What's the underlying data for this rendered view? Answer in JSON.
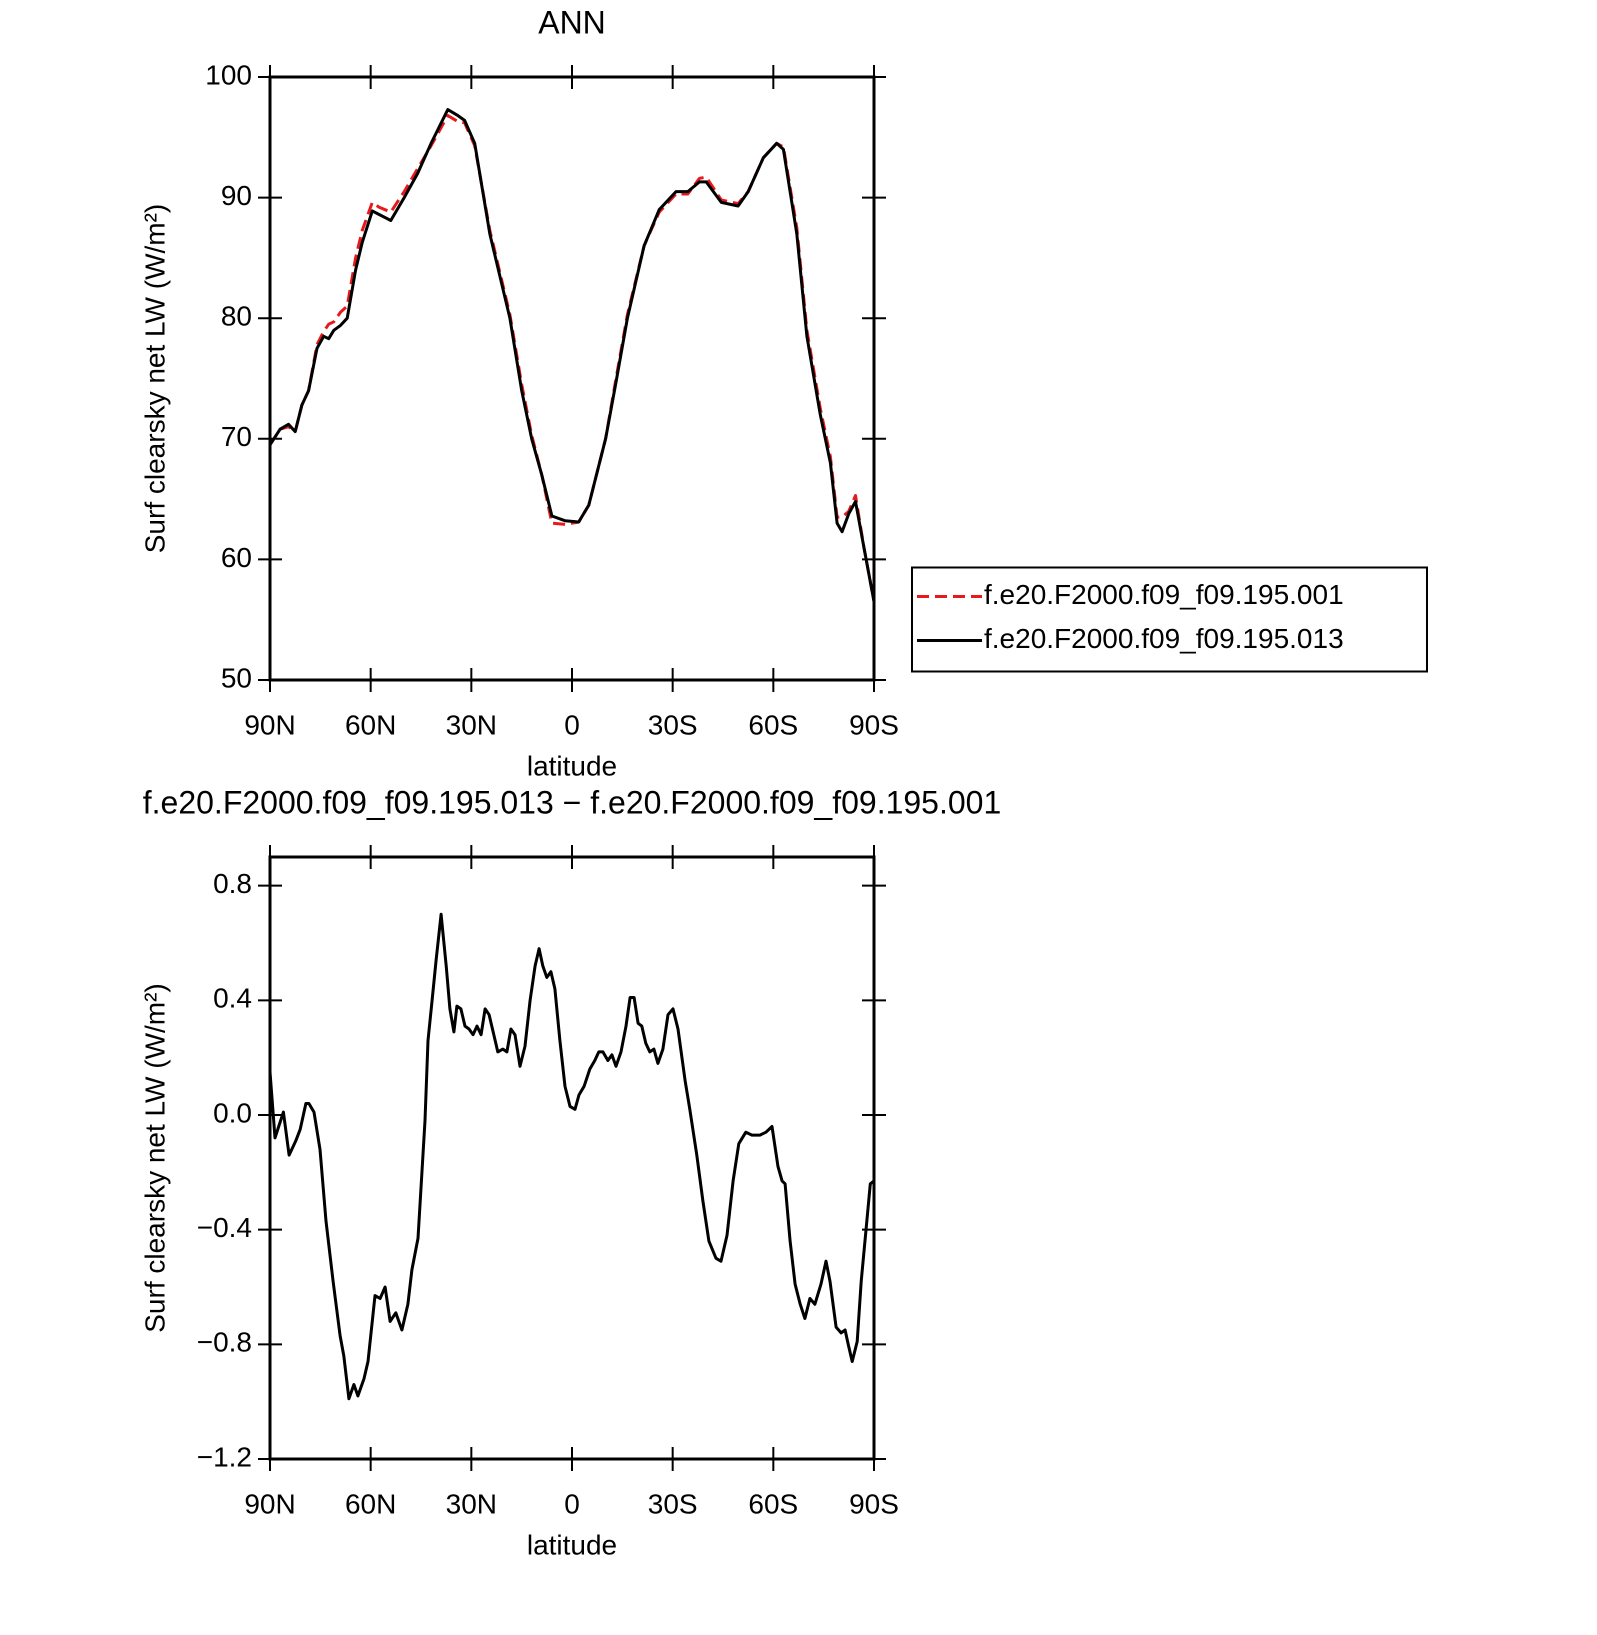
{
  "chart_data": [
    {
      "type": "line",
      "title": "ANN",
      "xlabel": "latitude",
      "ylabel": "Surf clearsky net LW (W/m²)",
      "xlim": [
        90,
        -90
      ],
      "xticks": [
        {
          "value": 90,
          "label": "90N"
        },
        {
          "value": 60,
          "label": "60N"
        },
        {
          "value": 30,
          "label": "30N"
        },
        0,
        {
          "value": -30,
          "label": "30S"
        },
        {
          "value": -60,
          "label": "60S"
        },
        {
          "value": -90,
          "label": "90S"
        }
      ],
      "ylim": [
        50,
        100
      ],
      "yticks": [
        50,
        60,
        70,
        80,
        90,
        100
      ],
      "legend": "right",
      "x": [
        90,
        87,
        84.5,
        82.5,
        80.5,
        78.5,
        76,
        74,
        72.5,
        71,
        69,
        67,
        64.5,
        62.5,
        59.5,
        57.5,
        54,
        50,
        46,
        42,
        37,
        34,
        32,
        29,
        24.5,
        18.5,
        15,
        12,
        9,
        6,
        2,
        -2,
        -5,
        -10,
        -13,
        -16.5,
        -21.5,
        -26,
        -31,
        -34.5,
        -38,
        -40,
        -44.5,
        -49.5,
        -52.5,
        -57,
        -61,
        -63,
        -67,
        -70,
        -74,
        -77,
        -79,
        -80.5,
        -82.5,
        -84.5,
        -87,
        -90
      ],
      "series": [
        {
          "name": "f.e20.F2000.f09_f09.195.001",
          "color": "#e8191c",
          "linestyle": "dashed",
          "values": [
            69.5,
            70.8,
            71,
            70.6,
            72.8,
            74,
            77.8,
            78.9,
            79.5,
            79.7,
            80.5,
            81,
            85,
            87.3,
            89.6,
            89.2,
            88.8,
            90.5,
            92.4,
            94.3,
            96.8,
            96.3,
            96.2,
            94.3,
            87.3,
            80.3,
            74.5,
            70.3,
            67,
            63,
            62.9,
            63.1,
            64.5,
            70,
            74.8,
            80.3,
            86,
            88.8,
            90.3,
            90.3,
            91.6,
            91.7,
            89.8,
            89.5,
            90.5,
            93.3,
            94.5,
            94.2,
            87.5,
            79,
            72.5,
            68.5,
            63.5,
            63.5,
            64,
            65.3,
            61,
            56.5
          ]
        },
        {
          "name": "f.e20.F2000.f09_f09.195.013",
          "color": "#000000",
          "linestyle": "solid",
          "values": [
            69.5,
            70.8,
            71.2,
            70.6,
            72.8,
            74,
            77.5,
            78.5,
            78.3,
            79,
            79.4,
            80,
            84,
            86.3,
            88.9,
            88.6,
            88.1,
            90,
            92,
            94.5,
            97.3,
            96.8,
            96.4,
            94.5,
            87,
            80,
            74,
            70,
            67,
            63.6,
            63.2,
            63.1,
            64.5,
            70,
            74.5,
            80,
            86,
            89,
            90.5,
            90.5,
            91.3,
            91.3,
            89.6,
            89.3,
            90.5,
            93.3,
            94.5,
            94,
            87,
            78.5,
            72,
            68,
            63,
            62.3,
            63.8,
            64.8,
            61,
            56.5
          ]
        }
      ]
    },
    {
      "type": "line",
      "title": "f.e20.F2000.f09_f09.195.013 − f.e20.F2000.f09_f09.195.001",
      "xlabel": "latitude",
      "ylabel": "Surf clearsky net LW (W/m²)",
      "xlim": [
        90,
        -90
      ],
      "xticks": [
        {
          "value": 90,
          "label": "90N"
        },
        {
          "value": 60,
          "label": "60N"
        },
        {
          "value": 30,
          "label": "30N"
        },
        0,
        {
          "value": -30,
          "label": "30S"
        },
        {
          "value": -60,
          "label": "60S"
        },
        {
          "value": -90,
          "label": "90S"
        }
      ],
      "ylim": [
        -1.2,
        0.9
      ],
      "yticks": [
        {
          "value": -1.2,
          "label": "−1.2"
        },
        {
          "value": -0.8,
          "label": "−0.8"
        },
        {
          "value": -0.4,
          "label": "−0.4"
        },
        {
          "value": 0,
          "label": "0.0"
        },
        0.4,
        0.8
      ],
      "color": "#000000",
      "x": [
        90,
        88.5,
        86,
        84.3,
        82.3,
        81,
        79.3,
        78.4,
        76.9,
        75.1,
        73.3,
        71.2,
        69.1,
        68,
        66.5,
        65,
        63.8,
        62,
        60.8,
        58.7,
        57.2,
        55.7,
        54.2,
        52.5,
        50.7,
        48.9,
        47.7,
        45.9,
        43.8,
        42.9,
        41.7,
        40.5,
        39,
        37.5,
        36.4,
        35.2,
        34.3,
        33.1,
        31.9,
        30.7,
        29.5,
        28.3,
        27.1,
        25.9,
        24.7,
        23.3,
        22.1,
        20.6,
        19.4,
        18.2,
        17,
        15.5,
        14,
        12.5,
        11,
        9.8,
        8.7,
        7.5,
        6.3,
        5.1,
        3.6,
        2.1,
        0.6,
        -0.9,
        -2.1,
        -3.6,
        -5.3,
        -6.8,
        -8,
        -9.2,
        -10.7,
        -11.9,
        -13.1,
        -14.6,
        -16.1,
        -17.3,
        -18.5,
        -19.7,
        -20.8,
        -22,
        -23.2,
        -24.4,
        -25.6,
        -27.1,
        -28.6,
        -30.1,
        -31.6,
        -33.7,
        -35.1,
        -37.2,
        -39,
        -40.8,
        -42.9,
        -44.4,
        -46.2,
        -48,
        -49.7,
        -51.8,
        -53.6,
        -56,
        -57.8,
        -59.6,
        -61.4,
        -62.6,
        -63.5,
        -65,
        -66.5,
        -68,
        -69.4,
        -70.9,
        -72.4,
        -74.2,
        -75.7,
        -76.9,
        -78.7,
        -80.2,
        -81.4,
        -82.3,
        -83.5,
        -85,
        -86.2,
        -87.7,
        -88.9,
        -90
      ],
      "values": [
        0.15,
        -0.08,
        0.01,
        -0.14,
        -0.09,
        -0.05,
        0.04,
        0.04,
        0.01,
        -0.12,
        -0.37,
        -0.58,
        -0.77,
        -0.84,
        -0.99,
        -0.94,
        -0.98,
        -0.92,
        -0.86,
        -0.63,
        -0.64,
        -0.6,
        -0.72,
        -0.69,
        -0.75,
        -0.66,
        -0.54,
        -0.43,
        -0.02,
        0.26,
        0.4,
        0.54,
        0.7,
        0.52,
        0.37,
        0.29,
        0.38,
        0.37,
        0.31,
        0.3,
        0.28,
        0.31,
        0.28,
        0.37,
        0.35,
        0.28,
        0.22,
        0.23,
        0.22,
        0.3,
        0.28,
        0.17,
        0.24,
        0.4,
        0.52,
        0.58,
        0.52,
        0.48,
        0.5,
        0.44,
        0.26,
        0.1,
        0.03,
        0.02,
        0.07,
        0.1,
        0.16,
        0.19,
        0.22,
        0.22,
        0.19,
        0.21,
        0.17,
        0.22,
        0.31,
        0.41,
        0.41,
        0.32,
        0.31,
        0.25,
        0.22,
        0.23,
        0.18,
        0.23,
        0.35,
        0.37,
        0.3,
        0.12,
        0.02,
        -0.14,
        -0.3,
        -0.44,
        -0.5,
        -0.51,
        -0.42,
        -0.23,
        -0.1,
        -0.06,
        -0.07,
        -0.07,
        -0.06,
        -0.04,
        -0.18,
        -0.23,
        -0.24,
        -0.44,
        -0.59,
        -0.66,
        -0.71,
        -0.64,
        -0.66,
        -0.59,
        -0.51,
        -0.58,
        -0.74,
        -0.76,
        -0.75,
        -0.8,
        -0.86,
        -0.79,
        -0.58,
        -0.39,
        -0.24,
        -0.23
      ]
    }
  ]
}
